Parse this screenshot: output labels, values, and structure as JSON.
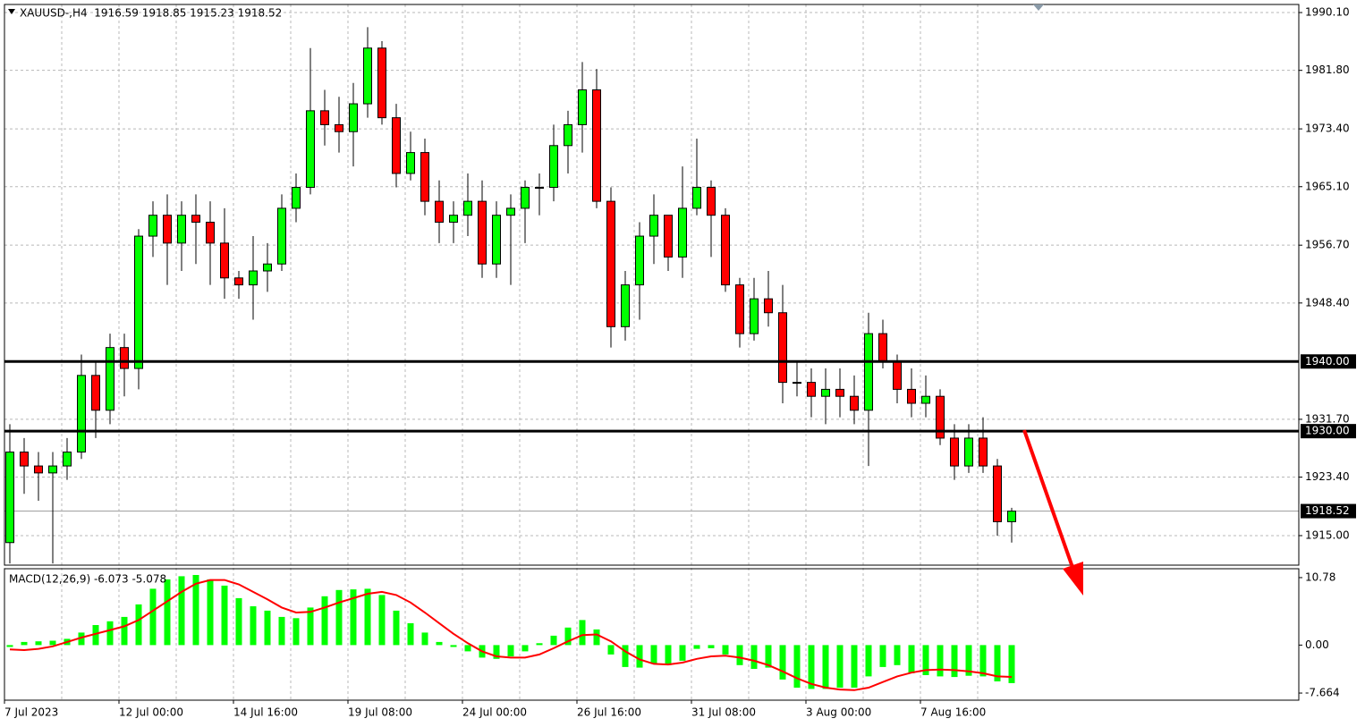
{
  "chart_data": [
    {
      "type": "candlestick",
      "title": "XAUUSD-,H4  1916.59 1918.85 1915.23 1918.52",
      "categories": [
        "7 Jul 2023",
        null,
        null,
        null,
        null,
        null,
        null,
        null,
        "12 Jul 00:00",
        null,
        null,
        null,
        null,
        null,
        null,
        null,
        "14 Jul 16:00",
        null,
        null,
        null,
        null,
        null,
        null,
        null,
        "19 Jul 08:00",
        null,
        null,
        null,
        null,
        null,
        null,
        null,
        "24 Jul 00:00",
        null,
        null,
        null,
        null,
        null,
        null,
        null,
        "26 Jul 16:00",
        null,
        null,
        null,
        null,
        null,
        null,
        null,
        "31 Jul 08:00",
        null,
        null,
        null,
        null,
        null,
        null,
        null,
        "3 Aug 00:00",
        null,
        null,
        null,
        null,
        null,
        null,
        null,
        "7 Aug 16:00",
        null,
        null,
        null,
        null,
        null,
        null
      ],
      "open": [
        1914,
        1927,
        1925,
        1924,
        1925,
        1927,
        1938,
        1933,
        1942,
        1939,
        1958,
        1961,
        1957,
        1961,
        1960,
        1957,
        1952,
        1951,
        1953,
        1954,
        1962,
        1965,
        1976,
        1974,
        1973,
        1977,
        1985,
        1975,
        1967,
        1970,
        1963,
        1960,
        1961,
        1963,
        1954,
        1961,
        1962,
        1965,
        1965,
        1971,
        1974,
        1979,
        1963,
        1945,
        1951,
        1958,
        1961,
        1955,
        1962,
        1965,
        1961,
        1951,
        1944,
        1949,
        1947,
        1937,
        1937,
        1935,
        1936,
        1935,
        1933,
        1944,
        1940,
        1936,
        1934,
        1935,
        1929,
        1925,
        1929,
        1925,
        1917
      ],
      "high": [
        1931,
        1929,
        1927,
        1927,
        1929,
        1941,
        1940,
        1944,
        1944,
        1959,
        1963,
        1964,
        1963,
        1964,
        1963,
        1962,
        1953,
        1958,
        1957,
        1964,
        1967,
        1985,
        1979,
        1978,
        1980,
        1988,
        1986,
        1977,
        1973,
        1972,
        1966,
        1963,
        1967,
        1966,
        1963,
        1964,
        1966,
        1967,
        1974,
        1976,
        1983,
        1982,
        1965,
        1953,
        1960,
        1964,
        1961,
        1968,
        1972,
        1966,
        1962,
        1952,
        1952,
        1953,
        1951,
        1940,
        1939,
        1939,
        1939,
        1938,
        1947,
        1946,
        1941,
        1939,
        1938,
        1936,
        1931,
        1931,
        1932,
        1926,
        1919
      ],
      "low": [
        1911,
        1921,
        1920,
        1911,
        1923,
        1926,
        1929,
        1931,
        1935,
        1936,
        1955,
        1951,
        1953,
        1954,
        1951,
        1949,
        1949,
        1946,
        1950,
        1953,
        1960,
        1964,
        1971,
        1970,
        1968,
        1975,
        1974,
        1965,
        1966,
        1961,
        1957,
        1957,
        1958,
        1952,
        1952,
        1951,
        1957,
        1961,
        1963,
        1967,
        1970,
        1962,
        1942,
        1943,
        1946,
        1954,
        1953,
        1952,
        1961,
        1955,
        1950,
        1942,
        1943,
        1945,
        1934,
        1935,
        1932,
        1931,
        1932,
        1931,
        1925,
        1939,
        1934,
        1932,
        1932,
        1928,
        1923,
        1924,
        1924,
        1915,
        1914
      ],
      "close": [
        1927,
        1925,
        1924,
        1925,
        1927,
        1938,
        1933,
        1942,
        1939,
        1958,
        1961,
        1957,
        1961,
        1960,
        1957,
        1952,
        1951,
        1953,
        1954,
        1962,
        1965,
        1976,
        1974,
        1973,
        1977,
        1985,
        1975,
        1967,
        1970,
        1963,
        1960,
        1961,
        1963,
        1954,
        1961,
        1962,
        1965,
        1965,
        1971,
        1974,
        1979,
        1963,
        1945,
        1951,
        1958,
        1961,
        1955,
        1962,
        1965,
        1961,
        1951,
        1944,
        1949,
        1947,
        1937,
        1937,
        1935,
        1936,
        1935,
        1933,
        1944,
        1940,
        1936,
        1934,
        1935,
        1929,
        1925,
        1929,
        1925,
        1917,
        1918.52
      ],
      "up_color": "#00ff00",
      "down_color": "#ff0000",
      "ylim": [
        1910.76,
        1991.26
      ],
      "yticks": [
        {
          "value": 1990.1,
          "label": "1990.10"
        },
        {
          "value": 1981.8,
          "label": "1981.80"
        },
        {
          "value": 1973.4,
          "label": "1973.40"
        },
        {
          "value": 1965.1,
          "label": "1965.10"
        },
        {
          "value": 1956.7,
          "label": "1956.70"
        },
        {
          "value": 1948.4,
          "label": "1948.40"
        },
        {
          "value": 1931.7,
          "label": "1931.70"
        },
        {
          "value": 1923.4,
          "label": "1923.40"
        },
        {
          "value": 1915,
          "label": "1915.00"
        }
      ],
      "levels": [
        {
          "value": 1940,
          "label": "1940.00"
        },
        {
          "value": 1930,
          "label": "1930.00"
        }
      ],
      "last": {
        "value": 1918.52,
        "label": "1918.52"
      },
      "grid": true
    },
    {
      "type": "macd",
      "title": "MACD(12,26,9) -6.073 -5.078",
      "series": [
        {
          "type": "bar",
          "color": "#00ff00",
          "values": [
            -0.3,
            0.5,
            0.6,
            0.7,
            1.0,
            2.0,
            3.2,
            3.8,
            4.5,
            6.5,
            9.0,
            10.5,
            11.0,
            11.2,
            10.5,
            9.5,
            7.5,
            6.2,
            5.5,
            4.5,
            4.3,
            6.0,
            7.8,
            8.8,
            8.9,
            9.0,
            8.0,
            5.5,
            3.5,
            2.0,
            0.5,
            -0.3,
            -1.0,
            -2.0,
            -2.2,
            -1.8,
            -1.0,
            0.3,
            1.5,
            2.8,
            4.0,
            2.5,
            -1.5,
            -3.5,
            -3.6,
            -3.0,
            -3.2,
            -2.5,
            -0.6,
            -0.5,
            -1.5,
            -3.2,
            -3.8,
            -3.6,
            -5.5,
            -6.8,
            -7.0,
            -7.0,
            -6.8,
            -6.8,
            -5.0,
            -3.5,
            -3.2,
            -4.5,
            -4.8,
            -5.0,
            -5.1,
            -4.9,
            -5.0,
            -5.8,
            -6.073
          ]
        },
        {
          "type": "line",
          "color": "#ff0000",
          "values": [
            -0.7,
            -0.8,
            -0.6,
            -0.2,
            0.5,
            1.2,
            1.8,
            2.4,
            3.0,
            4.0,
            5.5,
            7.0,
            8.5,
            9.8,
            10.4,
            10.4,
            9.7,
            8.5,
            7.3,
            6.0,
            5.2,
            5.3,
            6.0,
            6.8,
            7.5,
            8.2,
            8.5,
            8.0,
            6.8,
            5.2,
            3.5,
            1.8,
            0.3,
            -1.0,
            -1.8,
            -2.0,
            -2.0,
            -1.5,
            -0.5,
            0.6,
            1.6,
            1.7,
            0.6,
            -1.0,
            -2.3,
            -3.0,
            -3.1,
            -2.8,
            -2.2,
            -1.8,
            -1.7,
            -2.0,
            -2.5,
            -3.2,
            -4.2,
            -5.3,
            -6.2,
            -6.8,
            -7.1,
            -7.2,
            -6.8,
            -5.9,
            -5.0,
            -4.4,
            -4.0,
            -3.9,
            -4.0,
            -4.2,
            -4.5,
            -5.0,
            -5.078
          ]
        }
      ],
      "ylim": [
        -8.8,
        12.2
      ],
      "yticks": [
        10.78,
        {
          "value": 0,
          "label": "0.00"
        },
        -7.664
      ]
    }
  ]
}
